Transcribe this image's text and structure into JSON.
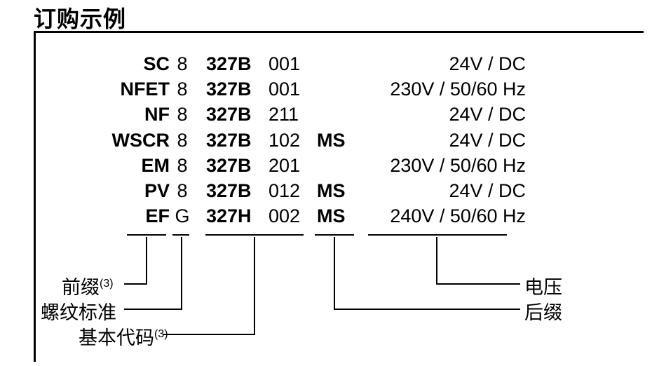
{
  "title": "订购示例",
  "rows": [
    {
      "prefix": "SC",
      "thread": "8",
      "base_bold": "327B",
      "base_num": "001",
      "suffix": "",
      "volt": "24V / DC"
    },
    {
      "prefix": "NFET",
      "thread": "8",
      "base_bold": "327B",
      "base_num": "001",
      "suffix": "",
      "volt": "230V / 50/60 Hz"
    },
    {
      "prefix": "NF",
      "thread": "8",
      "base_bold": "327B",
      "base_num": "211",
      "suffix": "",
      "volt": "24V / DC"
    },
    {
      "prefix": "WSCR",
      "thread": "8",
      "base_bold": "327B",
      "base_num": "102",
      "suffix": "MS",
      "volt": "24V / DC"
    },
    {
      "prefix": "EM",
      "thread": "8",
      "base_bold": "327B",
      "base_num": "201",
      "suffix": "",
      "volt": "230V / 50/60 Hz"
    },
    {
      "prefix": "PV",
      "thread": "8",
      "base_bold": "327B",
      "base_num": "012",
      "suffix": "MS",
      "volt": "24V / DC"
    },
    {
      "prefix": "EF",
      "thread": "G",
      "base_bold": "327H",
      "base_num": "002",
      "suffix": "MS",
      "volt": "240V / 50/60 Hz"
    }
  ],
  "labels": {
    "prefix": "前缀",
    "prefix_sup": "(3)",
    "thread": "螺纹标准",
    "base": "基本代码",
    "base_sup": "(3)",
    "suffix": "后缀",
    "volt": "电压"
  },
  "style": {
    "text_color": "#000000",
    "line_color": "#000000",
    "font_size_body": 27,
    "font_size_title": 32,
    "font_size_sup": 16,
    "row_height": 36.2,
    "underline_width": 2,
    "lead_width": 2
  }
}
